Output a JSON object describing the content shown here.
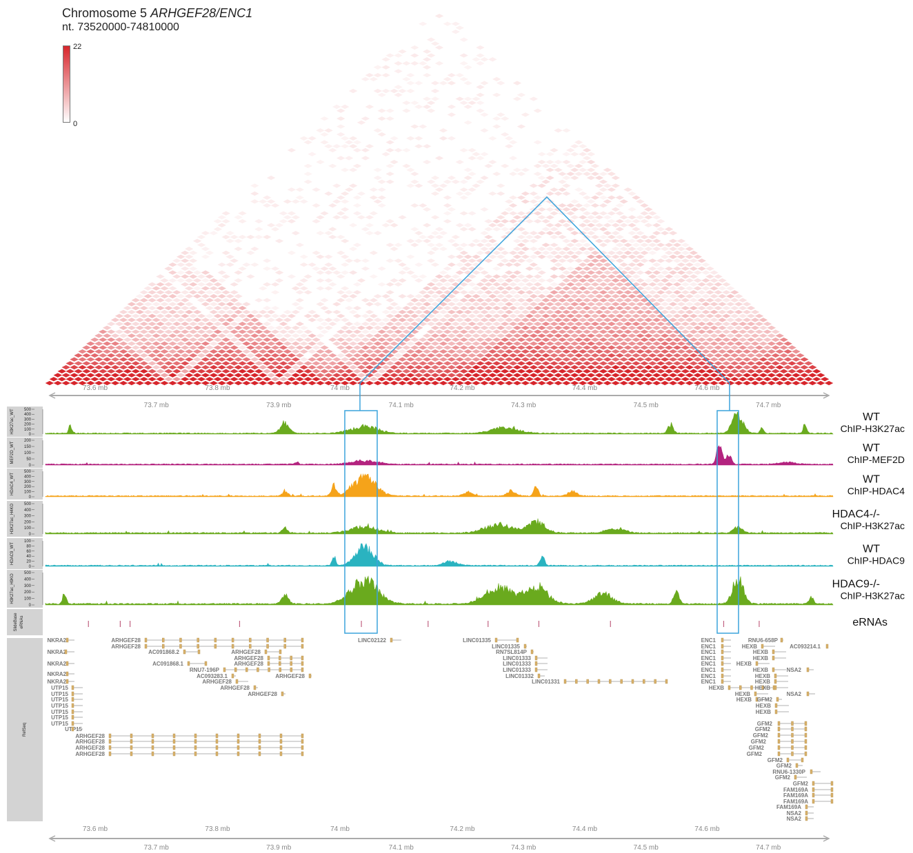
{
  "header": {
    "title_prefix": "Chromosome 5 ",
    "title_genes": "ARHGEF28/ENC1",
    "range": "nt. 73520000-74810000",
    "legend_max": "22",
    "legend_min": "0"
  },
  "axis": {
    "upper_ticks": [
      "73.6 mb",
      "73.8 mb",
      "74 mb",
      "74.2 mb",
      "74.4 mb",
      "74.6 mb"
    ],
    "lower_ticks": [
      "73.7 mb",
      "73.9 mb",
      "74.1 mb",
      "74.3 mb",
      "74.5 mb",
      "74.7 mb"
    ]
  },
  "tracks": [
    {
      "id": "h3k27ac_wt",
      "side_label": "H3K27ac_WT",
      "ticks": [
        "500",
        "400",
        "300",
        "200",
        "100",
        "0"
      ],
      "sample": "WT",
      "assay": "ChIP-H3K27ac",
      "color": "#6aaa1e"
    },
    {
      "id": "mef2d_wt",
      "side_label": "MEF2D_WT",
      "ticks": [
        "200",
        "150",
        "100",
        "50",
        "0"
      ],
      "sample": "WT",
      "assay": "ChIP-MEF2D",
      "color": "#b3237f"
    },
    {
      "id": "hdac4_wt",
      "side_label": "HDAC4_WT",
      "ticks": [
        "500",
        "400",
        "300",
        "200",
        "100",
        "0"
      ],
      "sample": "WT",
      "assay": "ChIP-HDAC4",
      "color": "#f5a31a"
    },
    {
      "id": "h3k27ac_h4ko",
      "side_label": "H3K27ac_H4KO",
      "ticks": [
        "500",
        "400",
        "300",
        "200",
        "100",
        "0"
      ],
      "sample": "HDAC4-/-",
      "assay": "ChIP-H3K27ac",
      "color": "#6aaa1e"
    },
    {
      "id": "hdac9_wt",
      "side_label": "HDAC9_WT",
      "ticks": [
        "100",
        "80",
        "60",
        "40",
        "20",
        "0"
      ],
      "sample": "WT",
      "assay": "ChIP-HDAC9",
      "color": "#2ab3c0"
    },
    {
      "id": "h3k27ac_h9ko",
      "side_label": "H3K27ac_H9KO",
      "ticks": [
        "500",
        "400",
        "300",
        "200",
        "100",
        "0"
      ],
      "sample": "HDAC9-/-",
      "assay": "ChIP-H3K27ac",
      "color": "#6aaa1e"
    }
  ],
  "erna": {
    "side_label_1": "SlideBase",
    "side_label_2": "eRNAs",
    "label": "eRNAs",
    "positions_mb": [
      73.589,
      73.641,
      73.657,
      73.836,
      74.035,
      74.144,
      74.242,
      74.325,
      74.442,
      74.627,
      74.685
    ]
  },
  "refseq": {
    "side_label": "RefSeq",
    "genes": [
      "NKRA2",
      "NKRA2",
      "NKRA2",
      "NKRA2",
      "NKRA2",
      "UTP15",
      "UTP15",
      "UTP15",
      "UTP15",
      "UTP15",
      "UTP15",
      "UTP15",
      "UTP15",
      "ARHGEF28",
      "ARHGEF28",
      "AC091868.2",
      "ARHGEF28",
      "ARHGEF28",
      "AC091868.1",
      "ARHGEF28",
      "RNU7-196P",
      "AC093283.1",
      "ARHGEF28",
      "ARHGEF28",
      "ARHGEF28",
      "ARHGEF28",
      "ARHGEF28",
      "ARHGEF28",
      "ARHGEF28",
      "ARHGEF28",
      "LINC02122",
      "LINC01335",
      "LINC01335",
      "RN7SL814P",
      "LINC01333",
      "LINC01333",
      "LINC01333",
      "LINC01332",
      "LINC01331",
      "ENC1",
      "ENC1",
      "ENC1",
      "ENC1",
      "ENC1",
      "ENC1",
      "ENC1",
      "ENC1",
      "HEXB",
      "RNU6-658P",
      "HEXB",
      "HEXB",
      "HEXB",
      "HEXB",
      "HEXB",
      "HEXB",
      "HEXB",
      "HEXB",
      "HEXB",
      "HEXB",
      "HEXB",
      "HEXB",
      "AC093214.1",
      "NSA2",
      "NSA2",
      "GFM2",
      "GFM2",
      "GFM2",
      "GFM2",
      "GFM2",
      "GFM2",
      "GFM2",
      "GFM2",
      "GFM2",
      "RNU6-1330P",
      "GFM2",
      "GFM2",
      "FAM169A",
      "FAM169A",
      "FAM169A",
      "FAM169A",
      "NSA2",
      "NSA2",
      "NSA2"
    ]
  },
  "colors": {
    "contact_high": "#d7262c",
    "highlight_box": "#3aa3dc",
    "side_panel": "#d3d3d3"
  }
}
